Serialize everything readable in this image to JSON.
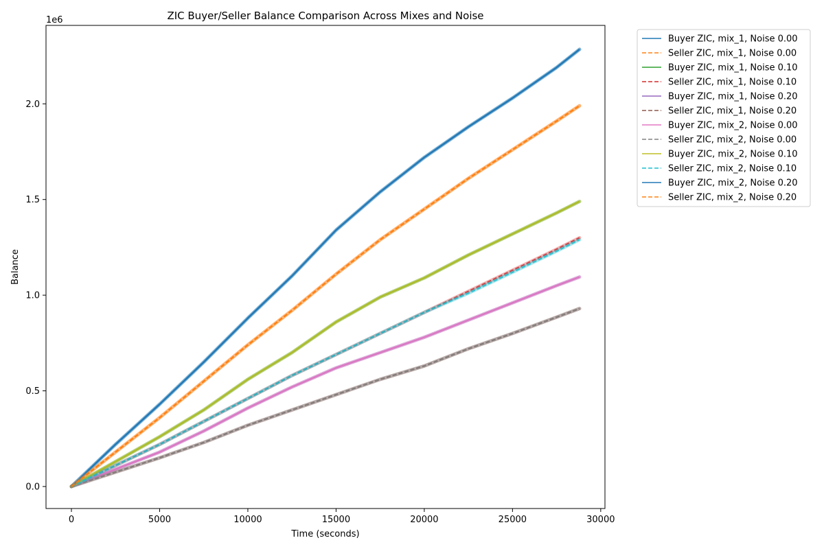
{
  "chart_data": {
    "type": "line",
    "title": "ZIC Buyer/Seller Balance Comparison Across Mixes and Noise",
    "xlabel": "Time (seconds)",
    "ylabel": "Balance",
    "y_offset_text": "1e6",
    "xlim": [
      -1440,
      30240
    ],
    "ylim": [
      -115000,
      2410000
    ],
    "x_ticks": [
      0,
      5000,
      10000,
      15000,
      20000,
      25000,
      30000
    ],
    "x_tick_labels": [
      "0",
      "5000",
      "10000",
      "15000",
      "20000",
      "25000",
      "30000"
    ],
    "y_ticks": [
      0,
      500000,
      1000000,
      1500000,
      2000000
    ],
    "y_tick_labels": [
      "0.0",
      "0.5",
      "1.0",
      "1.5",
      "2.0"
    ],
    "grid": false,
    "legend_position": "outside-top-right",
    "series": [
      {
        "name": "Buyer ZIC, mix_1, Noise 0.00",
        "color": "#1f77b4",
        "dashed": false,
        "x": [
          0,
          2500,
          5000,
          7500,
          10000,
          12500,
          15000,
          17500,
          20000,
          22500,
          25000,
          27500,
          28800
        ],
        "y": [
          0,
          220000,
          430000,
          650000,
          880000,
          1100000,
          1340000,
          1540000,
          1720000,
          1880000,
          2030000,
          2190000,
          2285000
        ]
      },
      {
        "name": "Seller ZIC, mix_1, Noise 0.00",
        "color": "#ff7f0e",
        "dashed": true,
        "x": [
          0,
          2500,
          5000,
          7500,
          10000,
          12500,
          15000,
          17500,
          20000,
          22500,
          25000,
          27500,
          28800
        ],
        "y": [
          0,
          180000,
          360000,
          550000,
          740000,
          920000,
          1110000,
          1290000,
          1450000,
          1610000,
          1760000,
          1910000,
          1990000
        ]
      },
      {
        "name": "Buyer ZIC, mix_1, Noise 0.10",
        "color": "#2ca02c",
        "dashed": false,
        "x": [
          0,
          2500,
          5000,
          7500,
          10000,
          12500,
          15000,
          17500,
          20000,
          22500,
          25000,
          27500,
          28800
        ],
        "y": [
          0,
          130000,
          260000,
          400000,
          560000,
          700000,
          860000,
          990000,
          1090000,
          1210000,
          1320000,
          1430000,
          1490000
        ]
      },
      {
        "name": "Seller ZIC, mix_1, Noise 0.10",
        "color": "#d62728",
        "dashed": true,
        "x": [
          0,
          2500,
          5000,
          7500,
          10000,
          12500,
          15000,
          17500,
          20000,
          22500,
          25000,
          27500,
          28800
        ],
        "y": [
          0,
          110000,
          220000,
          340000,
          460000,
          580000,
          690000,
          800000,
          910000,
          1020000,
          1130000,
          1240000,
          1300000
        ]
      },
      {
        "name": "Buyer ZIC, mix_1, Noise 0.20",
        "color": "#9467bd",
        "dashed": false,
        "x": [
          0,
          2500,
          5000,
          7500,
          10000,
          12500,
          15000,
          17500,
          20000,
          22500,
          25000,
          27500,
          28800
        ],
        "y": [
          0,
          90000,
          180000,
          290000,
          410000,
          520000,
          620000,
          700000,
          780000,
          870000,
          960000,
          1050000,
          1095000
        ]
      },
      {
        "name": "Seller ZIC, mix_1, Noise 0.20",
        "color": "#8c564b",
        "dashed": true,
        "x": [
          0,
          2500,
          5000,
          7500,
          10000,
          12500,
          15000,
          17500,
          20000,
          22500,
          25000,
          27500,
          28800
        ],
        "y": [
          0,
          75000,
          150000,
          230000,
          320000,
          400000,
          480000,
          560000,
          630000,
          720000,
          800000,
          885000,
          930000
        ]
      },
      {
        "name": "Buyer ZIC, mix_2, Noise 0.00",
        "color": "#e377c2",
        "dashed": false,
        "x": [
          0,
          2500,
          5000,
          7500,
          10000,
          12500,
          15000,
          17500,
          20000,
          22500,
          25000,
          27500,
          28800
        ],
        "y": [
          0,
          90000,
          180000,
          290000,
          410000,
          520000,
          620000,
          700000,
          780000,
          870000,
          960000,
          1050000,
          1095000
        ]
      },
      {
        "name": "Seller ZIC, mix_2, Noise 0.00",
        "color": "#7f7f7f",
        "dashed": true,
        "x": [
          0,
          2500,
          5000,
          7500,
          10000,
          12500,
          15000,
          17500,
          20000,
          22500,
          25000,
          27500,
          28800
        ],
        "y": [
          0,
          75000,
          150000,
          230000,
          320000,
          400000,
          480000,
          560000,
          630000,
          720000,
          800000,
          885000,
          930000
        ]
      },
      {
        "name": "Buyer ZIC, mix_2, Noise 0.10",
        "color": "#bcbd22",
        "dashed": false,
        "x": [
          0,
          2500,
          5000,
          7500,
          10000,
          12500,
          15000,
          17500,
          20000,
          22500,
          25000,
          27500,
          28800
        ],
        "y": [
          0,
          130000,
          260000,
          400000,
          560000,
          700000,
          860000,
          990000,
          1090000,
          1210000,
          1320000,
          1430000,
          1490000
        ]
      },
      {
        "name": "Seller ZIC, mix_2, Noise 0.10",
        "color": "#17becf",
        "dashed": true,
        "x": [
          0,
          2500,
          5000,
          7500,
          10000,
          12500,
          15000,
          17500,
          20000,
          22500,
          25000,
          27500,
          28800
        ],
        "y": [
          0,
          110000,
          220000,
          340000,
          460000,
          580000,
          690000,
          800000,
          910000,
          1010000,
          1120000,
          1230000,
          1290000
        ]
      },
      {
        "name": "Buyer ZIC, mix_2, Noise 0.20",
        "color": "#1f77b4",
        "dashed": false,
        "x": [
          0,
          2500,
          5000,
          7500,
          10000,
          12500,
          15000,
          17500,
          20000,
          22500,
          25000,
          27500,
          28800
        ],
        "y": [
          0,
          220000,
          430000,
          650000,
          880000,
          1100000,
          1340000,
          1540000,
          1720000,
          1880000,
          2030000,
          2190000,
          2285000
        ]
      },
      {
        "name": "Seller ZIC, mix_2, Noise 0.20",
        "color": "#ff7f0e",
        "dashed": true,
        "x": [
          0,
          2500,
          5000,
          7500,
          10000,
          12500,
          15000,
          17500,
          20000,
          22500,
          25000,
          27500,
          28800
        ],
        "y": [
          0,
          180000,
          360000,
          550000,
          740000,
          920000,
          1110000,
          1290000,
          1450000,
          1610000,
          1760000,
          1910000,
          1990000
        ]
      }
    ]
  }
}
